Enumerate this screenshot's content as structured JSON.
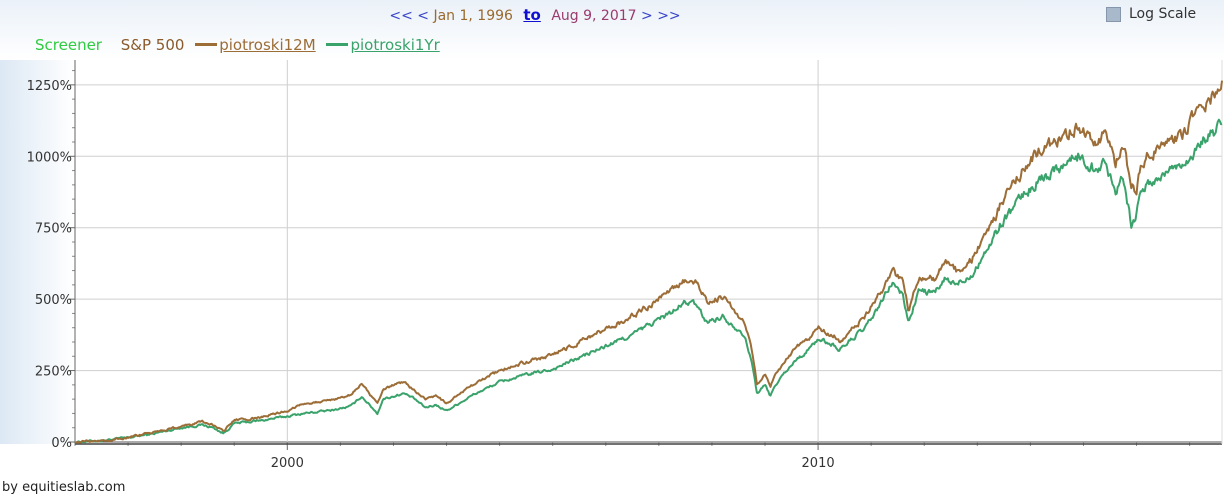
{
  "nav": {
    "prev_fast": "<<",
    "prev": "<",
    "start_date": "Jan 1, 1996",
    "to_label": "to",
    "end_date": "Aug 9, 2017",
    "next": ">",
    "next_fast": ">>"
  },
  "log_scale": {
    "label": "Log Scale",
    "checked": false
  },
  "legend": {
    "screener": "Screener",
    "benchmark": "S&P 500",
    "series1": "piotroski12M",
    "series2": "piotroski1Yr"
  },
  "footer": "by equitieslab.com",
  "colors": {
    "piotroski12M": "#9c6d37",
    "piotroski1Yr": "#3aa36b",
    "screener": "#2ecc40",
    "benchmark": "#8b5a2b"
  },
  "chart_data": {
    "type": "line",
    "x_range": [
      1996.0,
      2017.61
    ],
    "ylim": [
      0,
      1250
    ],
    "y_ticks": [
      0,
      250,
      500,
      750,
      1000,
      1250
    ],
    "y_tick_labels": [
      "0%",
      "250%",
      "500%",
      "750%",
      "1000%",
      "1250%"
    ],
    "x_ticks": [
      2000,
      2010
    ],
    "x_tick_labels": [
      "2000",
      "2010"
    ],
    "grid": true,
    "log_scale": false,
    "series": [
      {
        "name": "piotroski12M",
        "x": [
          1996.0,
          1996.5,
          1997.0,
          1997.5,
          1998.0,
          1998.4,
          1998.6,
          1998.8,
          1999.0,
          1999.5,
          2000.0,
          2000.3,
          2000.8,
          2001.2,
          2001.4,
          2001.5,
          2001.7,
          2001.8,
          2002.2,
          2002.4,
          2002.6,
          2002.8,
          2003.0,
          2003.5,
          2004.0,
          2004.5,
          2005.0,
          2005.5,
          2006.0,
          2006.5,
          2007.0,
          2007.3,
          2007.5,
          2007.7,
          2007.9,
          2008.2,
          2008.4,
          2008.6,
          2008.75,
          2008.85,
          2009.0,
          2009.1,
          2009.2,
          2009.4,
          2009.6,
          2009.8,
          2010.0,
          2010.3,
          2010.4,
          2010.6,
          2010.9,
          2011.2,
          2011.4,
          2011.6,
          2011.7,
          2011.9,
          2012.2,
          2012.4,
          2012.6,
          2012.9,
          2013.2,
          2013.5,
          2013.9,
          2014.2,
          2014.5,
          2014.9,
          2015.2,
          2015.4,
          2015.6,
          2015.75,
          2015.9,
          2016.0,
          2016.1,
          2016.3,
          2016.6,
          2016.9,
          2017.1,
          2017.3,
          2017.5,
          2017.61
        ],
        "y": [
          0,
          5,
          15,
          35,
          55,
          70,
          60,
          40,
          75,
          85,
          110,
          135,
          145,
          165,
          205,
          180,
          130,
          185,
          210,
          180,
          150,
          160,
          135,
          200,
          250,
          280,
          305,
          350,
          395,
          440,
          500,
          540,
          565,
          560,
          490,
          510,
          470,
          420,
          320,
          200,
          240,
          190,
          240,
          290,
          330,
          360,
          400,
          370,
          350,
          390,
          440,
          530,
          600,
          560,
          460,
          580,
          570,
          630,
          600,
          640,
          740,
          850,
          960,
          1030,
          1050,
          1110,
          1060,
          1080,
          980,
          1040,
          900,
          880,
          980,
          1010,
          1060,
          1080,
          1140,
          1180,
          1230,
          1270
        ]
      },
      {
        "name": "piotroski1Yr",
        "x": [
          1996.0,
          1996.5,
          1997.0,
          1997.5,
          1998.0,
          1998.4,
          1998.6,
          1998.8,
          1999.0,
          1999.5,
          2000.0,
          2000.3,
          2000.8,
          2001.2,
          2001.4,
          2001.5,
          2001.7,
          2001.8,
          2002.2,
          2002.4,
          2002.6,
          2002.8,
          2003.0,
          2003.5,
          2004.0,
          2004.5,
          2005.0,
          2005.5,
          2006.0,
          2006.5,
          2007.0,
          2007.3,
          2007.5,
          2007.7,
          2007.9,
          2008.2,
          2008.4,
          2008.6,
          2008.75,
          2008.85,
          2009.0,
          2009.1,
          2009.2,
          2009.4,
          2009.6,
          2009.8,
          2010.0,
          2010.3,
          2010.4,
          2010.6,
          2010.9,
          2011.2,
          2011.4,
          2011.6,
          2011.7,
          2011.9,
          2012.2,
          2012.4,
          2012.6,
          2012.9,
          2013.2,
          2013.5,
          2013.9,
          2014.2,
          2014.5,
          2014.9,
          2015.2,
          2015.4,
          2015.6,
          2015.75,
          2015.9,
          2016.0,
          2016.1,
          2016.3,
          2016.6,
          2016.9,
          2017.1,
          2017.3,
          2017.5,
          2017.61
        ],
        "y": [
          0,
          5,
          15,
          30,
          50,
          60,
          50,
          30,
          65,
          75,
          90,
          100,
          110,
          125,
          160,
          140,
          100,
          150,
          170,
          150,
          120,
          130,
          110,
          165,
          210,
          235,
          255,
          295,
          335,
          375,
          430,
          460,
          490,
          480,
          420,
          440,
          410,
          380,
          280,
          170,
          200,
          160,
          200,
          250,
          290,
          320,
          360,
          340,
          320,
          355,
          400,
          490,
          560,
          510,
          420,
          530,
          520,
          570,
          550,
          590,
          680,
          780,
          870,
          920,
          960,
          1000,
          960,
          980,
          880,
          940,
          760,
          800,
          880,
          910,
          950,
          980,
          1020,
          1060,
          1090,
          1110
        ]
      }
    ]
  }
}
